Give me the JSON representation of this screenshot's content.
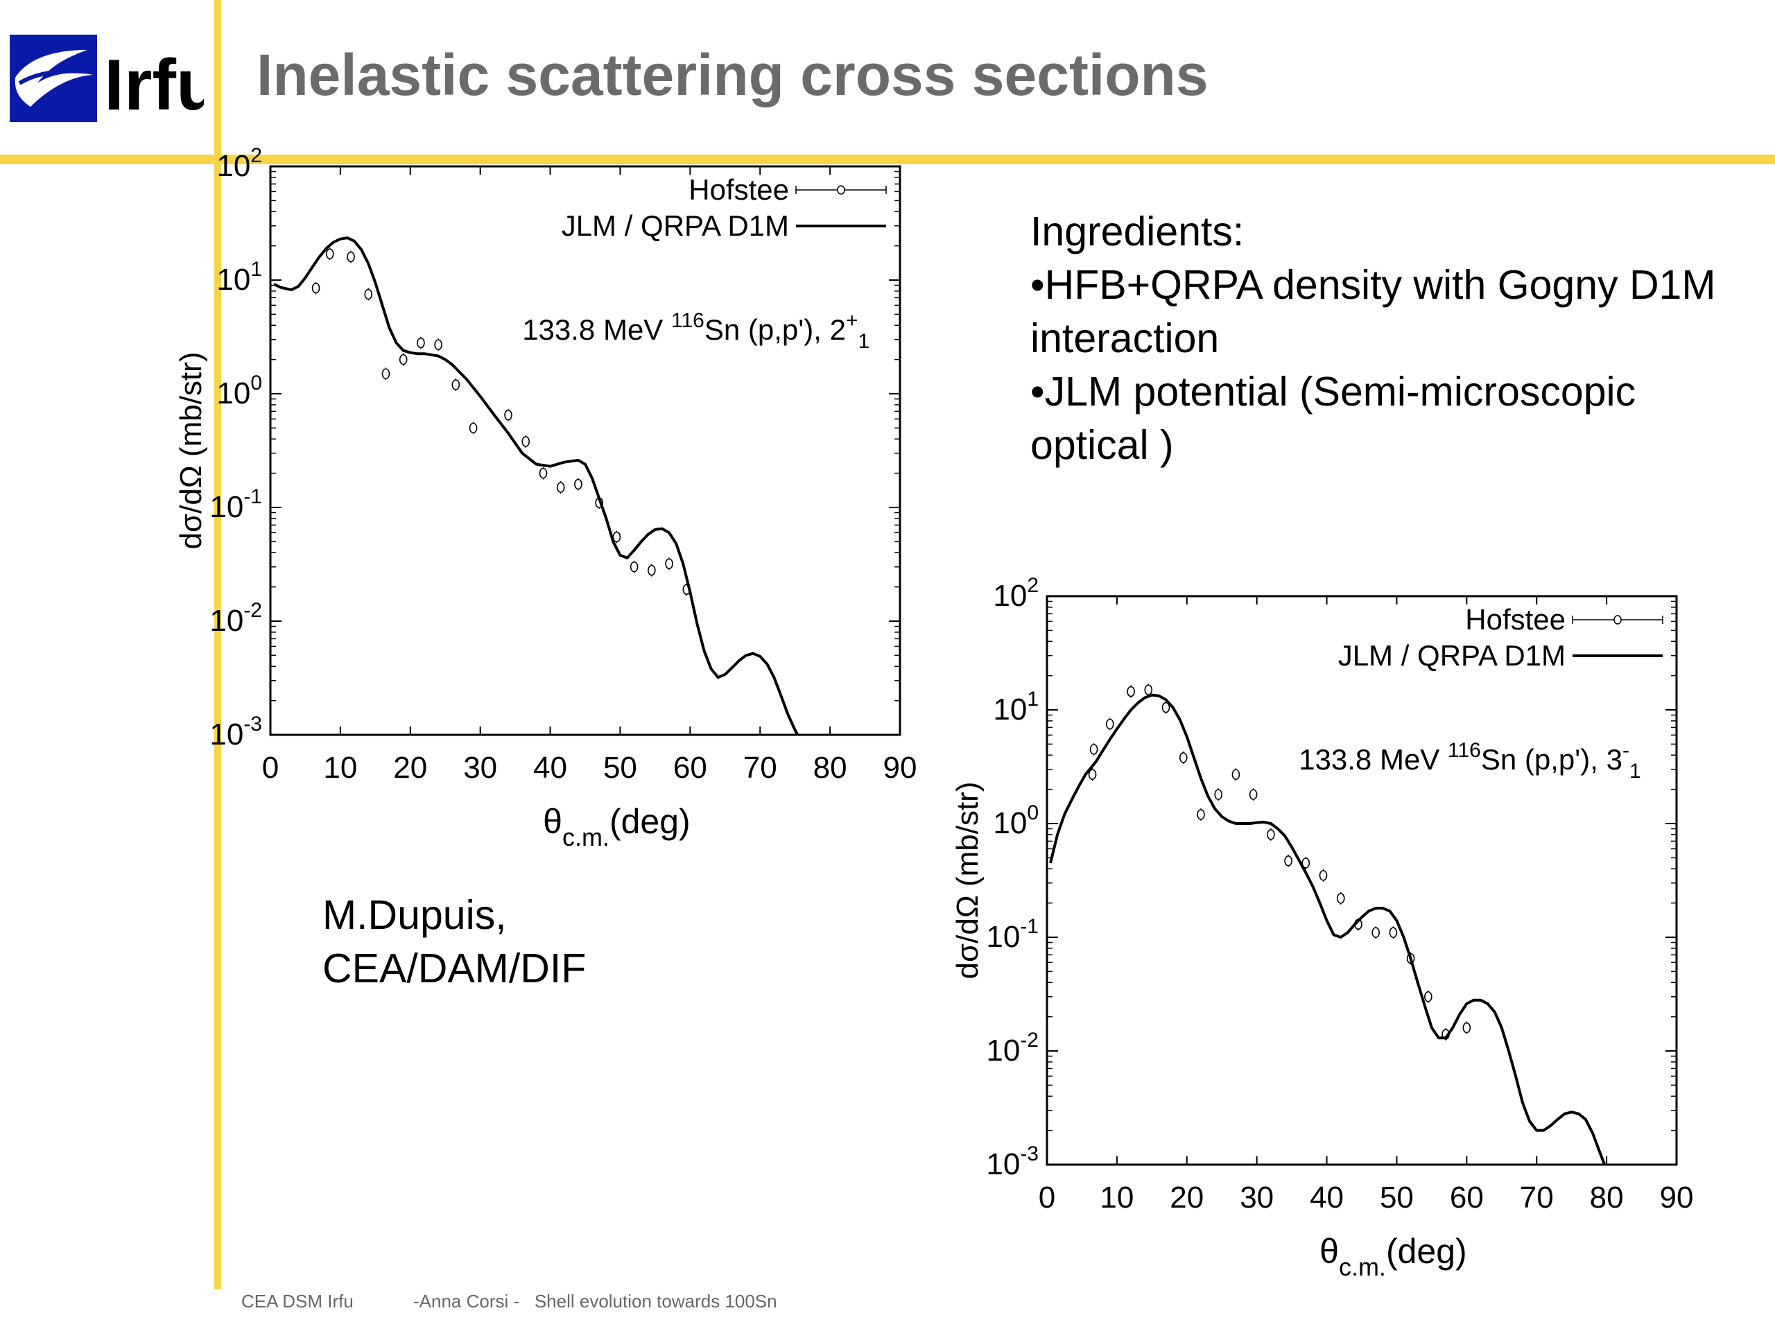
{
  "slide": {
    "title": "Inelastic scattering cross sections",
    "logo_text": "Irfu",
    "ingredients": [
      "Ingredients:",
      "•HFB+QRPA density with Gogny D1M interaction",
      "•JLM potential (Semi-microscopic optical )"
    ],
    "author": [
      "M.Dupuis,",
      "CEA/DAM/DIF"
    ],
    "footer_left": "CEA DSM Irfu",
    "footer_mid": "-Anna Corsi -   Shell evolution towards 100Sn",
    "colors": {
      "accent_bar": "#f5d547",
      "title": "#6b6b6b",
      "logo_blue": "#0a1aa8"
    }
  },
  "chart_data": [
    {
      "type": "line",
      "annotation": {
        "prefix": "133.8 MeV ",
        "mass": "116",
        "body": "Sn (p,p'), 2",
        "sup": "+",
        "sub": "1"
      },
      "xlabel": {
        "main": "θ",
        "sub": "c.m.",
        "rest": "(deg)"
      },
      "ylabel": "dσ/dΩ  (mb/str)",
      "xlim": [
        0,
        90
      ],
      "ylim": [
        0.001,
        100
      ],
      "yscale": "log",
      "xticks": [
        "0",
        "10",
        "20",
        "30",
        "40",
        "50",
        "60",
        "70",
        "80",
        "90"
      ],
      "yticks": [
        {
          "base": "10",
          "exp": "-3"
        },
        {
          "base": "10",
          "exp": "-2"
        },
        {
          "base": "10",
          "exp": "-1"
        },
        {
          "base": "10",
          "exp": "0"
        },
        {
          "base": "10",
          "exp": "1"
        },
        {
          "base": "10",
          "exp": "2"
        }
      ],
      "legend": [
        "Hofstee",
        "JLM / QRPA D1M"
      ],
      "series": [
        {
          "name": "Hofstee",
          "kind": "points",
          "x": [
            6.5,
            8.5,
            11.5,
            14,
            16.5,
            19,
            21.5,
            24,
            26.5,
            29,
            34,
            36.5,
            39,
            41.5,
            44,
            47,
            49.5,
            52,
            54.5,
            57,
            59.5
          ],
          "y": [
            8.5,
            17,
            16,
            7.5,
            1.5,
            2,
            2.8,
            2.7,
            1.2,
            0.5,
            0.65,
            0.38,
            0.2,
            0.15,
            0.16,
            0.11,
            0.055,
            0.03,
            0.028,
            0.032,
            0.019
          ]
        },
        {
          "name": "JLM / QRPA D1M",
          "kind": "line",
          "x": [
            0.5,
            1.5,
            3,
            4,
            5,
            6,
            7,
            8,
            9,
            10,
            11,
            12,
            13,
            14,
            15,
            16,
            17,
            18,
            19,
            20,
            21,
            22,
            23,
            24,
            25,
            26,
            28,
            30,
            32,
            34,
            36,
            38,
            40,
            42,
            44,
            45,
            46,
            47,
            48,
            49,
            50,
            51,
            52,
            53,
            54,
            55,
            56,
            57,
            58,
            59,
            60,
            61,
            62,
            63,
            64,
            65,
            66,
            67,
            68,
            69,
            70,
            71,
            72,
            73,
            74,
            75,
            76
          ],
          "y": [
            9.2,
            8.6,
            8.2,
            8.8,
            10.5,
            13,
            16,
            19,
            21.5,
            23,
            23.5,
            22,
            18.5,
            14,
            9.5,
            6,
            3.8,
            2.8,
            2.4,
            2.3,
            2.25,
            2.25,
            2.2,
            2.15,
            2.0,
            1.8,
            1.35,
            0.95,
            0.65,
            0.45,
            0.3,
            0.24,
            0.23,
            0.25,
            0.26,
            0.24,
            0.18,
            0.12,
            0.08,
            0.05,
            0.038,
            0.036,
            0.042,
            0.05,
            0.058,
            0.064,
            0.065,
            0.06,
            0.048,
            0.032,
            0.018,
            0.0095,
            0.0055,
            0.0038,
            0.0032,
            0.0034,
            0.0039,
            0.0045,
            0.005,
            0.0052,
            0.0049,
            0.0042,
            0.0032,
            0.0022,
            0.0015,
            0.0011,
            0.00085
          ]
        }
      ]
    },
    {
      "type": "line",
      "annotation": {
        "prefix": "133.8 MeV ",
        "mass": "116",
        "body": "Sn (p,p'), 3",
        "sup": "-",
        "sub": "1"
      },
      "xlabel": {
        "main": "θ",
        "sub": "c.m.",
        "rest": "(deg)"
      },
      "ylabel": "dσ/dΩ  (mb/str)",
      "xlim": [
        0,
        90
      ],
      "ylim": [
        0.001,
        100
      ],
      "yscale": "log",
      "xticks": [
        "0",
        "10",
        "20",
        "30",
        "40",
        "50",
        "60",
        "70",
        "80",
        "90"
      ],
      "yticks": [
        {
          "base": "10",
          "exp": "-3"
        },
        {
          "base": "10",
          "exp": "-2"
        },
        {
          "base": "10",
          "exp": "-1"
        },
        {
          "base": "10",
          "exp": "0"
        },
        {
          "base": "10",
          "exp": "1"
        },
        {
          "base": "10",
          "exp": "2"
        }
      ],
      "legend": [
        "Hofstee",
        "JLM / QRPA D1M"
      ],
      "series": [
        {
          "name": "Hofstee",
          "kind": "points",
          "x": [
            6.5,
            6.7,
            9,
            12,
            14.5,
            17,
            19.5,
            22,
            24.5,
            27,
            29.5,
            32,
            34.5,
            37,
            39.5,
            42,
            44.5,
            47,
            49.5,
            52,
            54.5,
            57,
            60
          ],
          "y": [
            2.7,
            4.5,
            7.5,
            14.5,
            15,
            10.5,
            3.8,
            1.2,
            1.8,
            2.7,
            1.8,
            0.8,
            0.47,
            0.45,
            0.35,
            0.22,
            0.13,
            0.11,
            0.11,
            0.065,
            0.03,
            0.014,
            0.016
          ]
        },
        {
          "name": "JLM / QRPA D1M",
          "kind": "line",
          "x": [
            0.5,
            1.5,
            2.5,
            3.5,
            4.5,
            5.5,
            7,
            8,
            9,
            10,
            11,
            12,
            13,
            14,
            15,
            16,
            17,
            18,
            19,
            20,
            21,
            22,
            23,
            24,
            25,
            26,
            27,
            28,
            29,
            30,
            31,
            32,
            33,
            34,
            35,
            36,
            37,
            38,
            39,
            40,
            41,
            42,
            43,
            44,
            45,
            46,
            47,
            48,
            49,
            50,
            51,
            52,
            53,
            54,
            55,
            56,
            57,
            58,
            59,
            60,
            61,
            62,
            63,
            64,
            65,
            66,
            67,
            68,
            69,
            70,
            71,
            72,
            73,
            74,
            75,
            76,
            77,
            78,
            79,
            80
          ],
          "y": [
            0.45,
            0.8,
            1.2,
            1.6,
            2.1,
            2.7,
            3.5,
            4.4,
            5.5,
            6.8,
            8.3,
            10,
            11.5,
            12.8,
            13.5,
            13.3,
            12.3,
            10.5,
            8.2,
            5.8,
            3.8,
            2.5,
            1.75,
            1.35,
            1.15,
            1.05,
            1.0,
            1.0,
            1.0,
            1.02,
            1.03,
            1.0,
            0.9,
            0.78,
            0.62,
            0.48,
            0.37,
            0.28,
            0.2,
            0.14,
            0.105,
            0.1,
            0.11,
            0.13,
            0.15,
            0.17,
            0.18,
            0.18,
            0.17,
            0.14,
            0.1,
            0.065,
            0.04,
            0.025,
            0.016,
            0.013,
            0.013,
            0.016,
            0.021,
            0.026,
            0.028,
            0.028,
            0.026,
            0.022,
            0.016,
            0.01,
            0.006,
            0.0035,
            0.0024,
            0.002,
            0.002,
            0.0022,
            0.0025,
            0.0028,
            0.0029,
            0.0028,
            0.0025,
            0.0019,
            0.0013,
            0.0009
          ]
        }
      ]
    }
  ]
}
